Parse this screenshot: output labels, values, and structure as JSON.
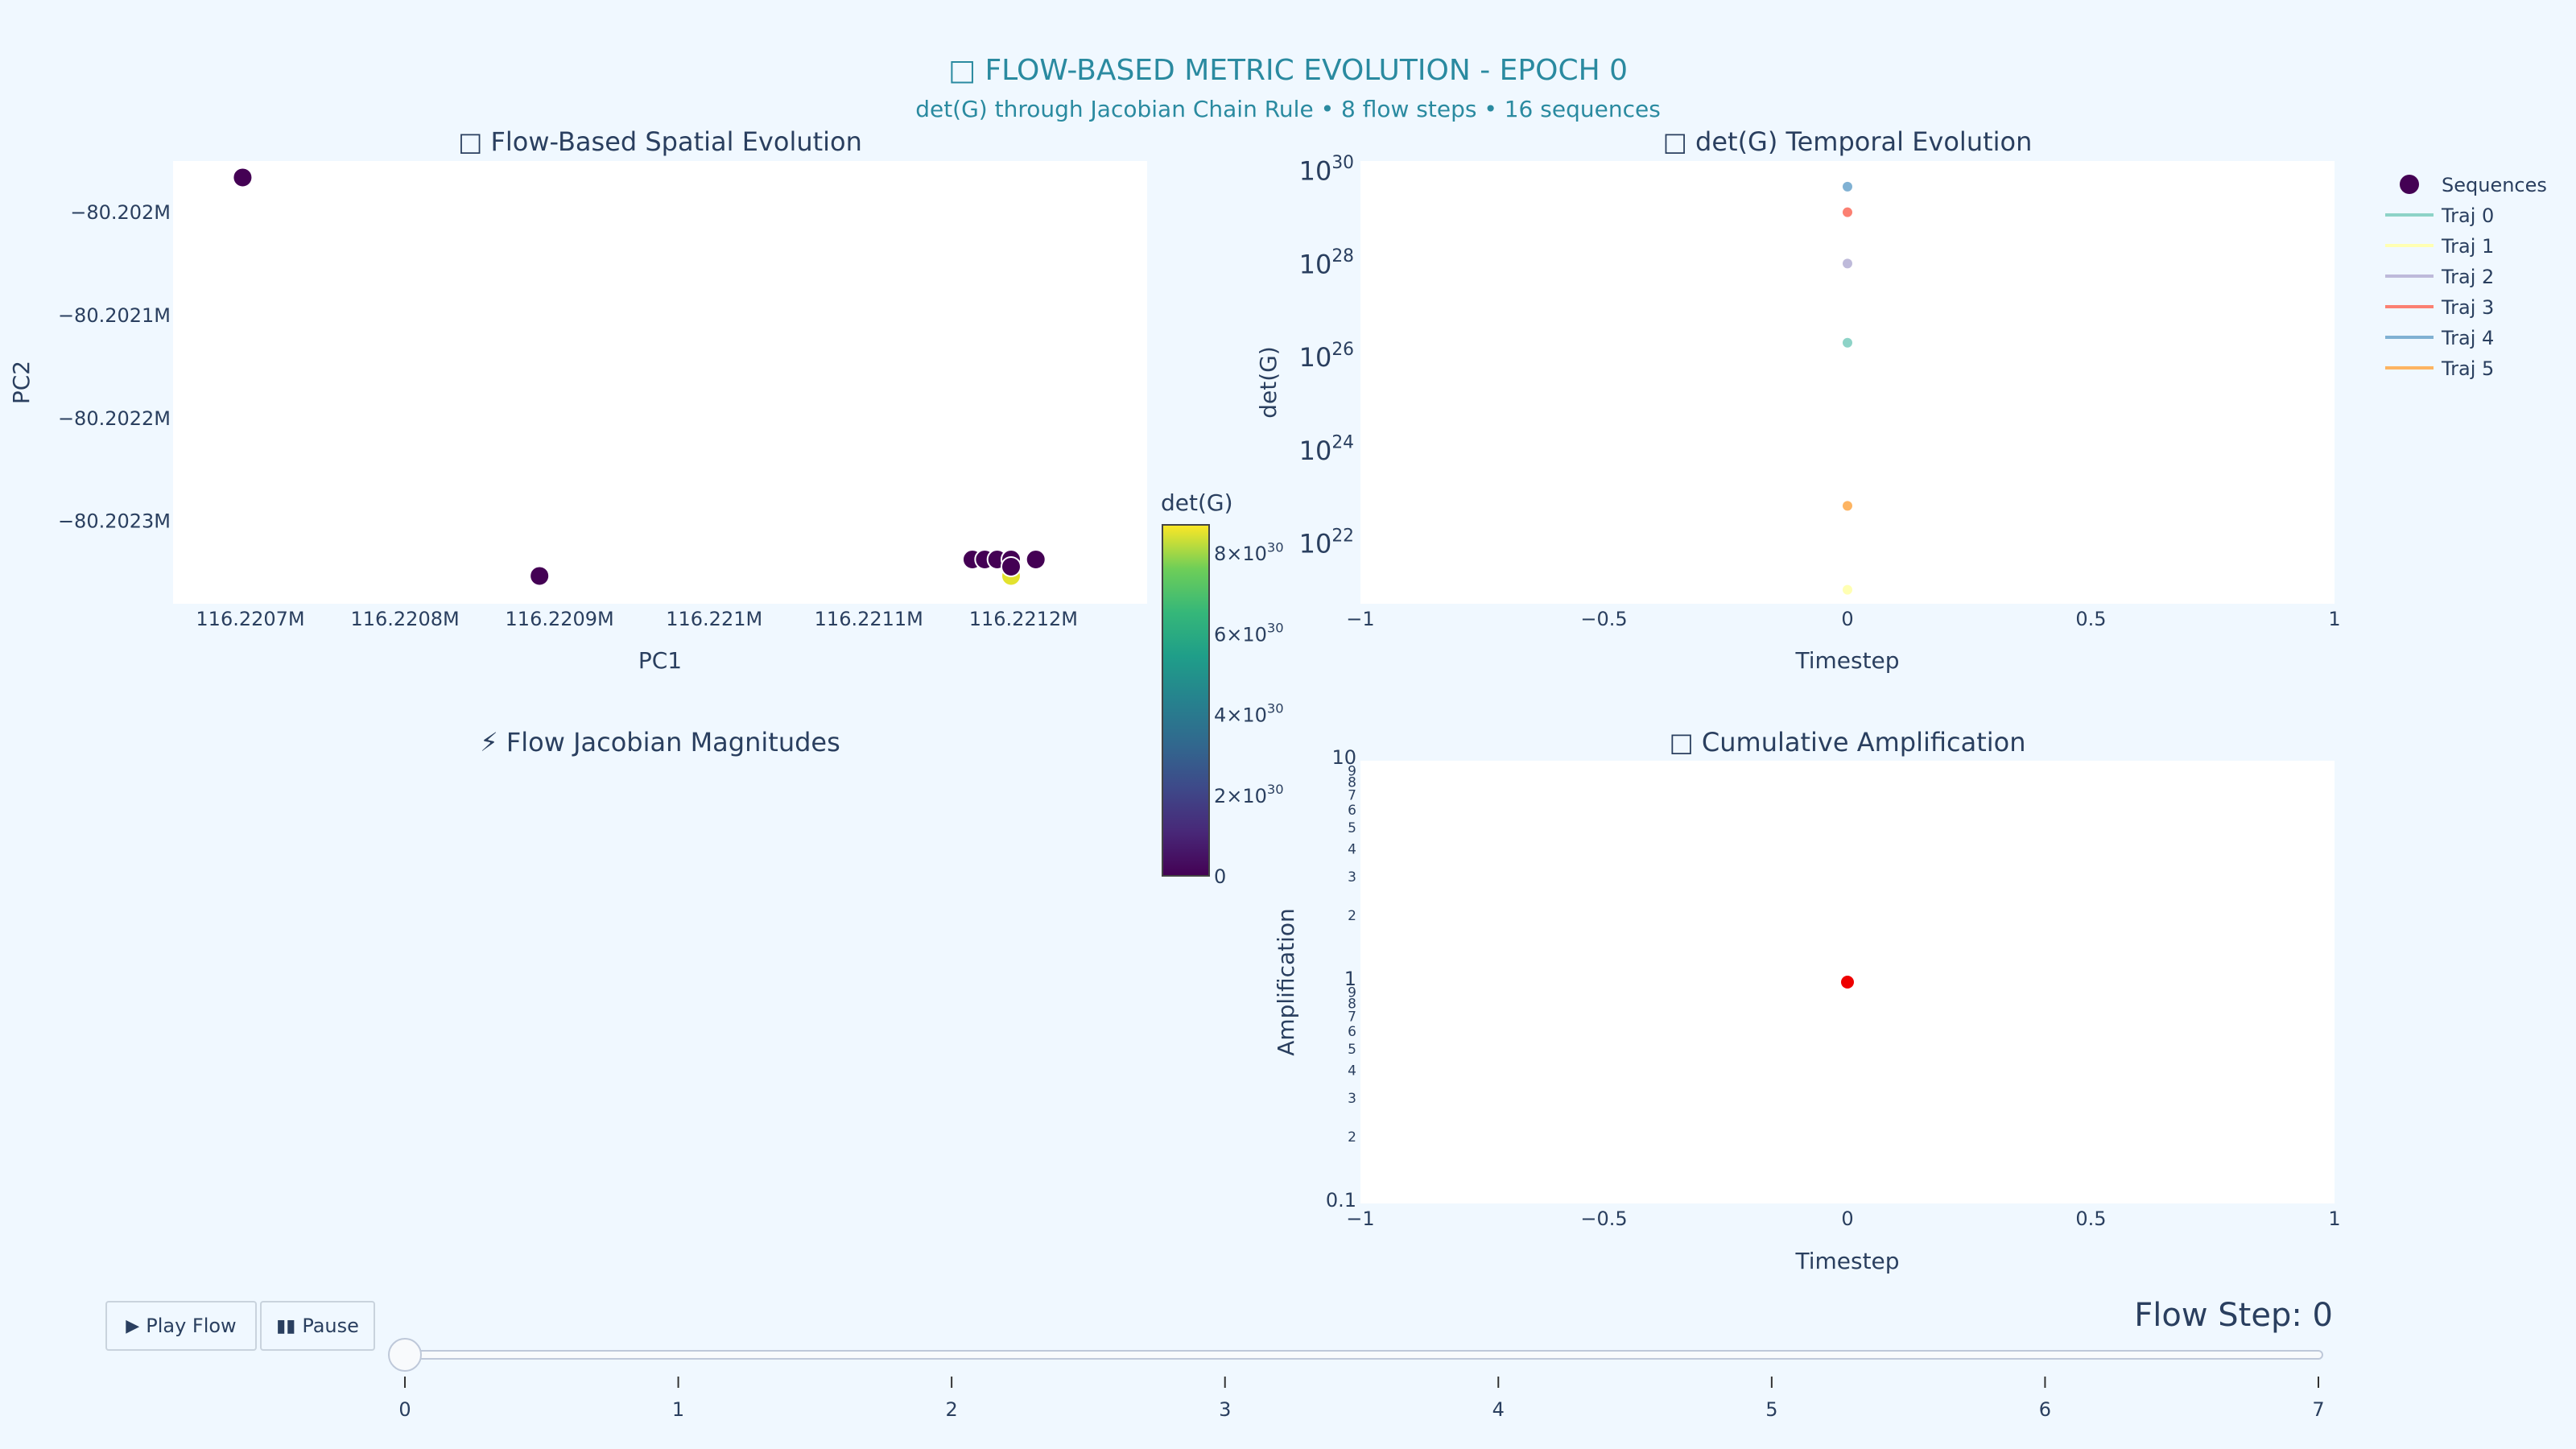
{
  "header": {
    "title": "□ FLOW-BASED METRIC EVOLUTION - EPOCH 0",
    "subtitle": "det(G) through Jacobian Chain Rule • 8 flow steps • 16 sequences"
  },
  "colors": {
    "title": "#2a8aa0",
    "text": "#2a3f5f",
    "page_bg": "#f0f8ff",
    "plot_bg": "#ffffff",
    "amp_point": "#ee0000"
  },
  "chart_data": [
    {
      "name": "spatial",
      "type": "scatter",
      "title": "□ Flow-Based Spatial Evolution",
      "xlabel": "PC1",
      "ylabel": "PC2",
      "xlim": [
        116.22065,
        116.22128
      ],
      "ylim": [
        -80.20238,
        -80.20195
      ],
      "x_ticks": [
        116.2207,
        116.2208,
        116.2209,
        116.221,
        116.2211,
        116.2212
      ],
      "x_tick_labels": [
        "116.2207M",
        "116.2208M",
        "116.2209M",
        "116.221M",
        "116.2211M",
        "116.2212M"
      ],
      "y_ticks": [
        -80.202,
        -80.2021,
        -80.2022,
        -80.2023
      ],
      "y_tick_labels": [
        "−80.202M",
        "−80.2021M",
        "−80.2022M",
        "−80.2023M"
      ],
      "points": [
        {
          "x": 116.220695,
          "y": -80.201966,
          "value": 0
        },
        {
          "x": 116.220887,
          "y": -80.202353,
          "value": 0
        },
        {
          "x": 116.221192,
          "y": -80.202353,
          "value": 8.5e+30
        },
        {
          "x": 116.221167,
          "y": -80.202337,
          "value": 0
        },
        {
          "x": 116.221175,
          "y": -80.202337,
          "value": 0
        },
        {
          "x": 116.221183,
          "y": -80.202337,
          "value": 0
        },
        {
          "x": 116.221192,
          "y": -80.202337,
          "value": 0
        },
        {
          "x": 116.221208,
          "y": -80.202337,
          "value": 0
        },
        {
          "x": 116.221192,
          "y": -80.202344,
          "value": 0
        }
      ],
      "colorbar": {
        "title": "det(G)",
        "range": [
          0,
          8.7e+30
        ],
        "ticks": [
          0,
          2e+30,
          4e+30,
          6e+30,
          8e+30
        ],
        "tick_labels": [
          {
            "base": "0",
            "exp": ""
          },
          {
            "base": "2×10",
            "exp": "30"
          },
          {
            "base": "4×10",
            "exp": "30"
          },
          {
            "base": "6×10",
            "exp": "30"
          },
          {
            "base": "8×10",
            "exp": "30"
          }
        ]
      }
    },
    {
      "name": "temporal",
      "type": "scatter",
      "title": "□ det(G) Temporal Evolution",
      "xlabel": "Timestep",
      "ylabel": "det(G)",
      "y_scale": "log",
      "xlim": [
        -1,
        1
      ],
      "ylim_log10": [
        20.7,
        30.2
      ],
      "x_ticks": [
        -1,
        -0.5,
        0,
        0.5,
        1
      ],
      "x_tick_labels": [
        "−1",
        "−0.5",
        "0",
        "0.5",
        "1"
      ],
      "y_ticks_log10": [
        22,
        24,
        26,
        28,
        30
      ],
      "y_tick_labels": [
        {
          "base": "10",
          "exp": "22"
        },
        {
          "base": "10",
          "exp": "24"
        },
        {
          "base": "10",
          "exp": "26"
        },
        {
          "base": "10",
          "exp": "28"
        },
        {
          "base": "10",
          "exp": "30"
        }
      ],
      "series": [
        {
          "name": "Traj 0",
          "color": "#8dd3c7",
          "x": [
            0
          ],
          "y_log10": [
            26.3
          ]
        },
        {
          "name": "Traj 1",
          "color": "#ffffb3",
          "x": [
            0
          ],
          "y_log10": [
            21.0
          ]
        },
        {
          "name": "Traj 2",
          "color": "#bebada",
          "x": [
            0
          ],
          "y_log10": [
            28.0
          ]
        },
        {
          "name": "Traj 3",
          "color": "#fb8072",
          "x": [
            0
          ],
          "y_log10": [
            29.1
          ]
        },
        {
          "name": "Traj 4",
          "color": "#80b1d3",
          "x": [
            0
          ],
          "y_log10": [
            29.65
          ]
        },
        {
          "name": "Traj 5",
          "color": "#fdb462",
          "x": [
            0
          ],
          "y_log10": [
            22.8
          ]
        }
      ]
    },
    {
      "name": "jacobian",
      "type": "scatter",
      "title": "⚡ Flow Jacobian Magnitudes"
    },
    {
      "name": "amplification",
      "type": "scatter",
      "title": "□ Cumulative Amplification",
      "xlabel": "Timestep",
      "ylabel": "Amplification",
      "y_scale": "log",
      "xlim": [
        -1,
        1
      ],
      "ylim": [
        0.1,
        10
      ],
      "x_ticks": [
        -1,
        -0.5,
        0,
        0.5,
        1
      ],
      "x_tick_labels": [
        "−1",
        "−0.5",
        "0",
        "0.5",
        "1"
      ],
      "y_major": [
        {
          "value": 0.1,
          "label": "0.1"
        },
        {
          "value": 1,
          "label": "1"
        },
        {
          "value": 10,
          "label": "10"
        }
      ],
      "y_minor_digits": [
        "2",
        "3",
        "4",
        "5",
        "6",
        "7",
        "8",
        "9"
      ],
      "points": [
        {
          "x": 0,
          "y": 1
        }
      ]
    }
  ],
  "legend": {
    "entries": [
      {
        "label": "Sequences",
        "kind": "marker",
        "color": "#440154"
      },
      {
        "label": "Traj 0",
        "kind": "line",
        "color": "#8dd3c7"
      },
      {
        "label": "Traj 1",
        "kind": "line",
        "color": "#ffffb3"
      },
      {
        "label": "Traj 2",
        "kind": "line",
        "color": "#bebada"
      },
      {
        "label": "Traj 3",
        "kind": "line",
        "color": "#fb8072"
      },
      {
        "label": "Traj 4",
        "kind": "line",
        "color": "#80b1d3"
      },
      {
        "label": "Traj 5",
        "kind": "line",
        "color": "#fdb462"
      }
    ]
  },
  "controls": {
    "play_label": "Play Flow",
    "play_icon": "play-icon",
    "pause_label": "Pause",
    "pause_icon": "pause-icon",
    "slider": {
      "current_label": "Flow Step: 0",
      "value": 0,
      "min": 0,
      "max": 7,
      "ticks": [
        "0",
        "1",
        "2",
        "3",
        "4",
        "5",
        "6",
        "7"
      ]
    }
  }
}
